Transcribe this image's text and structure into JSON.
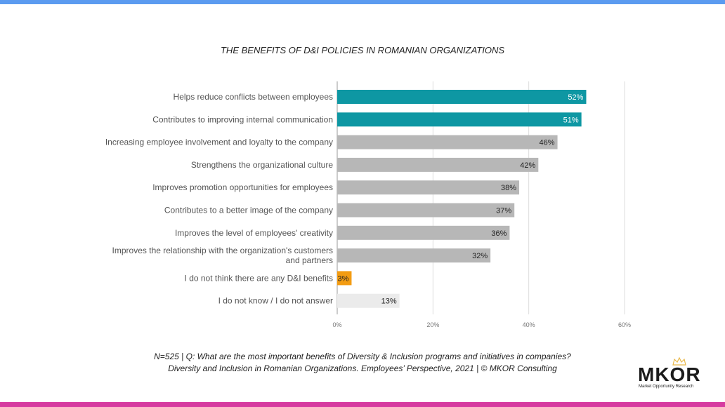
{
  "colors": {
    "top_band": "#5b9bf0",
    "bottom_band": "#d63ba0",
    "teal": "#0e97a3",
    "gray": "#b7b7b7",
    "orange": "#f39c12",
    "light_gray": "#ebebeb"
  },
  "chart_data": {
    "type": "bar",
    "orientation": "horizontal",
    "title": "THE BENEFITS OF D&I POLICIES IN ROMANIAN ORGANIZATIONS",
    "categories": [
      "Helps reduce conflicts between employees",
      "Contributes to improving internal communication",
      "Increasing employee involvement and loyalty to the company",
      "Strengthens the organizational culture",
      "Improves promotion opportunities for employees",
      "Contributes to a better image of the company",
      "Improves the level of employees' creativity",
      "Improves the relationship with the organization's customers and partners",
      "I do not think there are any D&I benefits",
      "I do not know / I do not answer"
    ],
    "values": [
      52,
      51,
      46,
      42,
      38,
      37,
      36,
      32,
      3,
      13
    ],
    "value_labels": [
      "52%",
      "51%",
      "46%",
      "42%",
      "38%",
      "37%",
      "36%",
      "32%",
      "3%",
      "13%"
    ],
    "bar_colors": [
      "teal",
      "teal",
      "gray",
      "gray",
      "gray",
      "gray",
      "gray",
      "gray",
      "orange",
      "light_gray"
    ],
    "xlim": [
      0,
      60
    ],
    "x_ticks": [
      0,
      20,
      40,
      60
    ],
    "x_tick_labels": [
      "0%",
      "20%",
      "40%",
      "60%"
    ],
    "grid": true,
    "legend": "none"
  },
  "footer": {
    "line1": "N=525 | Q: What are the most important benefits of Diversity & Inclusion programs and initiatives in companies?",
    "line2": "Diversity and Inclusion in Romanian Organizations. Employees’ Perspective, 2021 | © MKOR Consulting"
  },
  "logo": {
    "name": "MKOR",
    "tagline": "Market Opportunity Research"
  }
}
